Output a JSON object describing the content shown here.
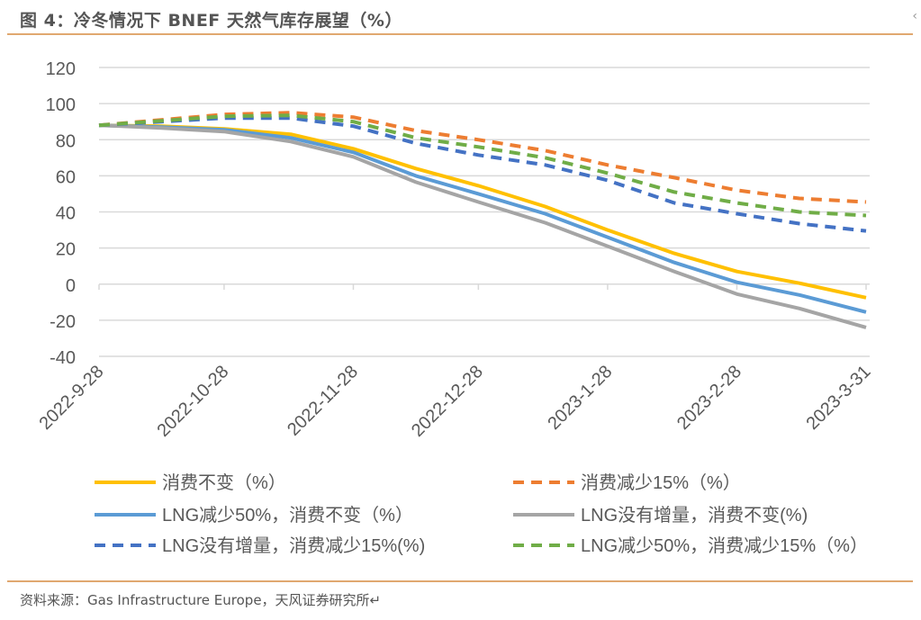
{
  "header": {
    "title": "图 4：冷冬情况下 BNEF  天然气库存展望（%）",
    "corner_glyph": "‹"
  },
  "footer": {
    "source": "资料来源：Gas Infrastructure Europe，天风证券研究所↵"
  },
  "chart_data": {
    "type": "line",
    "title": "冷冬情况下 BNEF 天然气库存展望（%）",
    "xlabel": "",
    "ylabel": "",
    "ylim": [
      -40,
      120
    ],
    "yticks": [
      "120",
      "100",
      "80",
      "60",
      "40",
      "20",
      "0",
      "-20",
      "-40"
    ],
    "ytick_values": [
      120,
      100,
      80,
      60,
      40,
      20,
      0,
      -20,
      -40
    ],
    "xtick_labels": [
      "2022-9-28",
      "2022-10-28",
      "2022-11-28",
      "2022-12-28",
      "2023-1-28",
      "2023-2-28",
      "2023-3-31"
    ],
    "xtick_days": [
      0,
      30,
      61,
      91,
      122,
      153,
      184
    ],
    "x_days": [
      0,
      15,
      30,
      46,
      61,
      76,
      91,
      107,
      122,
      138,
      153,
      168,
      184
    ],
    "grid": true,
    "legend_position": "bottom",
    "series": [
      {
        "name": "消费不变（%）",
        "color": "#FFC000",
        "dashed": false,
        "values": [
          88,
          87.5,
          86,
          83,
          75,
          64,
          54.5,
          43,
          30,
          17,
          7,
          0.5,
          -7.5
        ]
      },
      {
        "name": "消费减少15%（%）",
        "color": "#ED7D31",
        "dashed": true,
        "values": [
          88,
          91,
          94,
          95,
          92.5,
          85,
          80,
          74,
          66,
          59,
          52,
          47.5,
          45.5
        ]
      },
      {
        "name": "LNG减少50%，消费不变（%）",
        "color": "#5B9BD5",
        "dashed": false,
        "values": [
          88,
          87,
          85.5,
          81,
          73,
          60,
          50,
          39,
          26,
          12,
          1,
          -6,
          -15.5
        ]
      },
      {
        "name": "LNG没有增量，消费不变(%)",
        "color": "#A5A5A5",
        "dashed": false,
        "values": [
          88,
          86.5,
          84.5,
          79,
          70.5,
          56.5,
          45.5,
          34,
          21,
          7,
          -5.5,
          -13.5,
          -24
        ]
      },
      {
        "name": "LNG没有增量，消费减少15%(%)",
        "color": "#4472C4",
        "dashed": true,
        "values": [
          88,
          90,
          92,
          92,
          87.5,
          78,
          71.5,
          66,
          57.5,
          45,
          39,
          33.5,
          29.5
        ]
      },
      {
        "name": "LNG减少50%，消费减少15%（%）",
        "color": "#70AD47",
        "dashed": true,
        "values": [
          88,
          90.5,
          93,
          93.5,
          90,
          81,
          76,
          70,
          61.5,
          51,
          45,
          40,
          38
        ]
      }
    ]
  }
}
